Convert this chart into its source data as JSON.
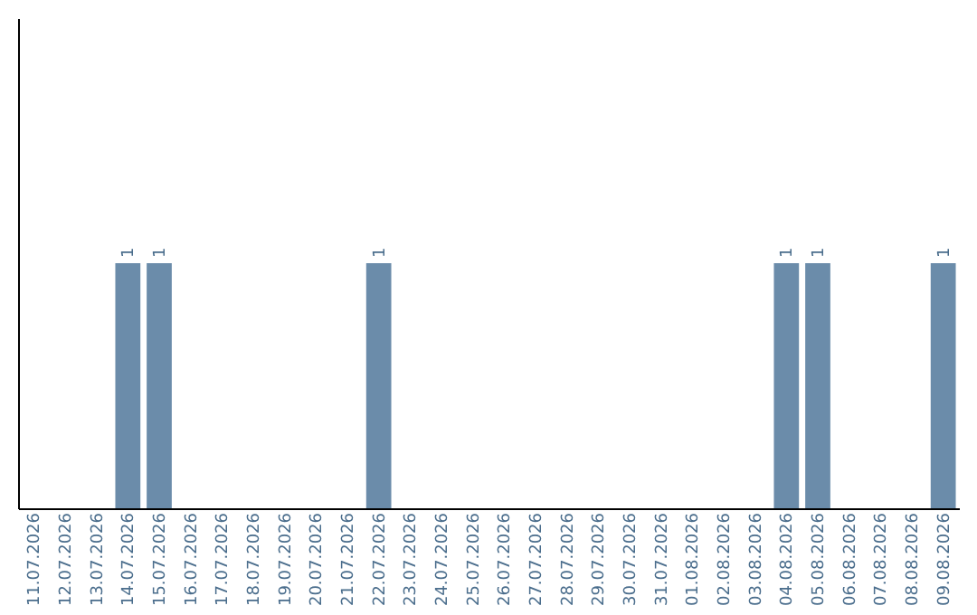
{
  "chart_data": {
    "type": "bar",
    "categories": [
      "11.07.2026",
      "12.07.2026",
      "13.07.2026",
      "14.07.2026",
      "15.07.2026",
      "16.07.2026",
      "17.07.2026",
      "18.07.2026",
      "19.07.2026",
      "20.07.2026",
      "21.07.2026",
      "22.07.2026",
      "23.07.2026",
      "24.07.2026",
      "25.07.2026",
      "26.07.2026",
      "27.07.2026",
      "28.07.2026",
      "29.07.2026",
      "30.07.2026",
      "31.07.2026",
      "01.08.2026",
      "02.08.2026",
      "03.08.2026",
      "04.08.2026",
      "05.08.2026",
      "06.08.2026",
      "07.08.2026",
      "08.08.2026",
      "09.08.2026"
    ],
    "values": [
      0,
      0,
      0,
      1,
      1,
      0,
      0,
      0,
      0,
      0,
      0,
      1,
      0,
      0,
      0,
      0,
      0,
      0,
      0,
      0,
      0,
      0,
      0,
      0,
      1,
      1,
      0,
      0,
      0,
      1
    ],
    "value_labels": [
      null,
      null,
      null,
      "1",
      "1",
      null,
      null,
      null,
      null,
      null,
      null,
      "1",
      null,
      null,
      null,
      null,
      null,
      null,
      null,
      null,
      null,
      null,
      null,
      null,
      "1",
      "1",
      null,
      null,
      null,
      "1"
    ],
    "color": "#6b8caa",
    "ylim": [
      0,
      2
    ],
    "tick_labels": "x",
    "grid": false
  }
}
